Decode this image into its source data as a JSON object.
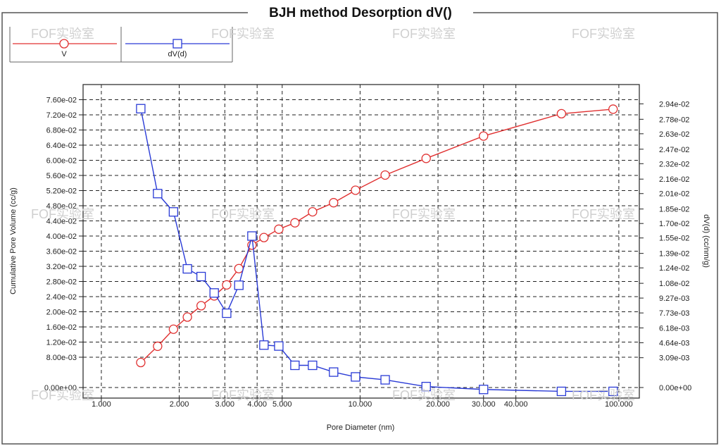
{
  "watermark": "FOF实验室",
  "chart_data": {
    "type": "line",
    "title": "BJH method Desorption  dV()",
    "xlabel": "Pore Diameter (nm)",
    "ylabel_left": "Cumulative Pore Volume (cc/g)",
    "ylabel_right": "dV(d) (cc/nm/g)",
    "x_scale": "log",
    "xlim": [
      0.85,
      120
    ],
    "ylim_left": [
      0,
      0.08
    ],
    "ylim_right": [
      0,
      0.0314
    ],
    "grid": true,
    "legend_position": "top-left",
    "x_ticks": [
      "1.000",
      "2.000",
      "3.000",
      "4.000",
      "5.000",
      "10.000",
      "20.000",
      "30.000",
      "40.000",
      "100.000"
    ],
    "x_tick_values": [
      1,
      2,
      3,
      4,
      5,
      10,
      20,
      30,
      40,
      100
    ],
    "y_left_ticks": [
      "0.00e+00",
      "8.00e-03",
      "1.20e-02",
      "1.60e-02",
      "2.00e-02",
      "2.40e-02",
      "2.80e-02",
      "3.20e-02",
      "3.60e-02",
      "4.00e-02",
      "4.40e-02",
      "4.80e-02",
      "5.20e-02",
      "5.60e-02",
      "6.00e-02",
      "6.40e-02",
      "6.80e-02",
      "7.20e-02",
      "7.60e-02"
    ],
    "y_left_tick_values": [
      0,
      0.008,
      0.012,
      0.016,
      0.02,
      0.024,
      0.028,
      0.032,
      0.036,
      0.04,
      0.044,
      0.048,
      0.052,
      0.056,
      0.06,
      0.064,
      0.068,
      0.072,
      0.076
    ],
    "y_right_ticks": [
      "0.00e+00",
      "3.09e-03",
      "4.64e-03",
      "6.18e-03",
      "7.73e-03",
      "9.27e-03",
      "1.08e-02",
      "1.24e-02",
      "1.39e-02",
      "1.55e-02",
      "1.70e-02",
      "1.85e-02",
      "2.01e-02",
      "2.16e-02",
      "2.32e-02",
      "2.47e-02",
      "2.63e-02",
      "2.78e-02",
      "2.94e-02"
    ],
    "y_right_tick_values": [
      0,
      0.00309,
      0.00464,
      0.00618,
      0.00773,
      0.00927,
      0.0108,
      0.0124,
      0.0139,
      0.0155,
      0.017,
      0.0185,
      0.0201,
      0.0216,
      0.0232,
      0.0247,
      0.0263,
      0.0278,
      0.0294
    ],
    "series": [
      {
        "name": "V",
        "axis": "left",
        "color": "#e03030",
        "marker": "circle",
        "x": [
          1.42,
          1.65,
          1.9,
          2.15,
          2.43,
          2.73,
          3.05,
          3.4,
          3.82,
          4.25,
          4.85,
          5.6,
          6.55,
          7.9,
          9.6,
          12.5,
          18.0,
          30.0,
          60.0,
          95.0
        ],
        "y": [
          0.0066,
          0.0109,
          0.0154,
          0.0186,
          0.0216,
          0.0242,
          0.0271,
          0.0314,
          0.0376,
          0.0396,
          0.0418,
          0.0435,
          0.0464,
          0.0488,
          0.0521,
          0.0561,
          0.0605,
          0.0664,
          0.0723,
          0.0735
        ]
      },
      {
        "name": "dV(d)",
        "axis": "right",
        "color": "#2a3bd6",
        "marker": "square",
        "x": [
          1.42,
          1.65,
          1.9,
          2.15,
          2.43,
          2.73,
          3.05,
          3.4,
          3.82,
          4.25,
          4.85,
          5.6,
          6.55,
          7.9,
          9.6,
          12.5,
          18.0,
          30.0,
          60.0,
          95.0
        ],
        "y": [
          0.0289,
          0.0201,
          0.0182,
          0.0123,
          0.0115,
          0.0098,
          0.0077,
          0.0106,
          0.0157,
          0.0044,
          0.0043,
          0.0023,
          0.0023,
          0.0016,
          0.0011,
          0.0008,
          0.0001,
          -0.0002,
          -0.0004,
          -0.0004
        ]
      }
    ]
  }
}
